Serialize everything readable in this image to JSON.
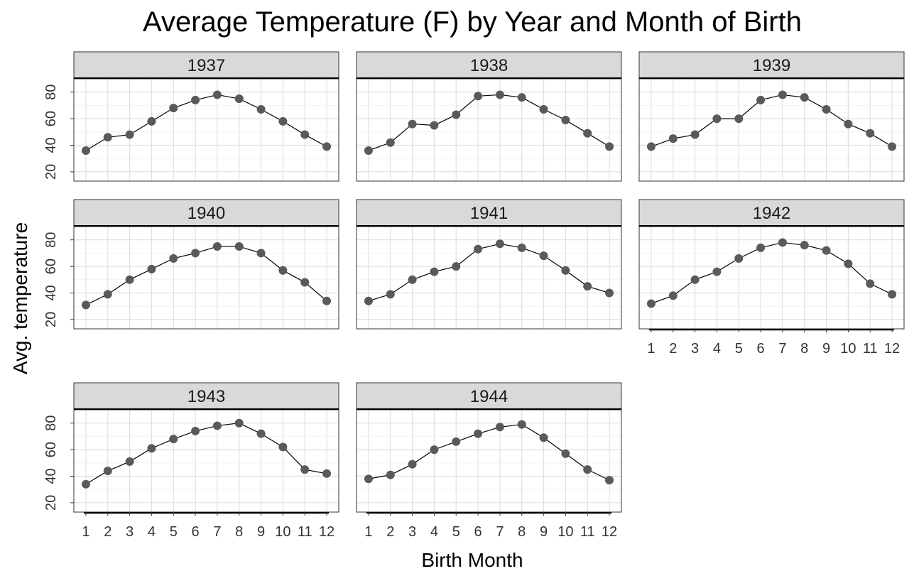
{
  "chart_data": {
    "type": "line",
    "title": "Average Temperature (F) by Year and Month of Birth",
    "x_label": "Birth Month",
    "y_label": "Avg. temperature",
    "x": [
      1,
      2,
      3,
      4,
      5,
      6,
      7,
      8,
      9,
      10,
      11,
      12
    ],
    "xlim": [
      0.45,
      12.55
    ],
    "xticks": [
      1,
      2,
      3,
      4,
      5,
      6,
      7,
      8,
      9,
      10,
      11,
      12
    ],
    "ylim": [
      13,
      90
    ],
    "yticks": [
      20,
      40,
      60,
      80
    ],
    "grid": true,
    "color": "#5a5a5a",
    "line_color": "#000000",
    "facets": [
      {
        "name": "1937",
        "values": [
          36,
          46,
          48,
          58,
          68,
          74,
          78,
          75,
          67,
          58,
          48,
          39
        ]
      },
      {
        "name": "1938",
        "values": [
          36,
          42,
          56,
          55,
          63,
          77,
          78,
          76,
          67,
          59,
          49,
          39
        ]
      },
      {
        "name": "1939",
        "values": [
          39,
          45,
          48,
          60,
          60,
          74,
          78,
          76,
          67,
          56,
          49,
          39
        ]
      },
      {
        "name": "1940",
        "values": [
          31,
          39,
          50,
          58,
          66,
          70,
          75,
          75,
          70,
          57,
          48,
          34
        ]
      },
      {
        "name": "1941",
        "values": [
          34,
          39,
          50,
          56,
          60,
          73,
          77,
          74,
          68,
          57,
          45,
          40
        ]
      },
      {
        "name": "1942",
        "values": [
          32,
          38,
          50,
          56,
          66,
          74,
          78,
          76,
          72,
          62,
          47,
          39
        ]
      },
      {
        "name": "1943",
        "values": [
          34,
          44,
          51,
          61,
          68,
          74,
          78,
          80,
          72,
          62,
          45,
          42
        ]
      },
      {
        "name": "1944",
        "values": [
          38,
          41,
          49,
          60,
          66,
          72,
          77,
          79,
          69,
          57,
          45,
          37
        ]
      }
    ]
  }
}
